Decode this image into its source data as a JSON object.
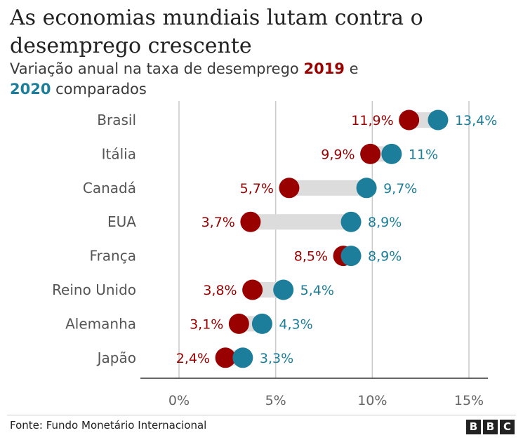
{
  "title": "As economias mundiais lutam contra o desemprego crescente",
  "subtitle": {
    "prefix": "Variação anual na taxa de desemprego",
    "year_a": "2019",
    "middle": "e",
    "year_b": "2020",
    "suffix": "comparados"
  },
  "colors": {
    "y2019": "#990000",
    "y2020": "#1c7e9a",
    "connector": "#dcdcdc",
    "grid": "#cccccc"
  },
  "chart_data": {
    "type": "dumbbell",
    "categories": [
      "Brasil",
      "Itália",
      "Canadá",
      "EUA",
      "França",
      "Reino Unido",
      "Alemanha",
      "Japão"
    ],
    "series": [
      {
        "name": "2019",
        "values": [
          11.9,
          9.9,
          5.7,
          3.7,
          8.5,
          3.8,
          3.1,
          2.4
        ],
        "labels": [
          "11,9%",
          "9,9%",
          "5,7%",
          "3,7%",
          "8,5%",
          "3,8%",
          "3,1%",
          "2,4%"
        ]
      },
      {
        "name": "2020",
        "values": [
          13.4,
          11,
          9.7,
          8.9,
          8.9,
          5.4,
          4.3,
          3.3
        ],
        "labels": [
          "13,4%",
          "11%",
          "9,7%",
          "8,9%",
          "8,9%",
          "5,4%",
          "4,3%",
          "3,3%"
        ]
      }
    ],
    "xlim": [
      0,
      15
    ],
    "xticks": [
      0,
      5,
      10,
      15
    ],
    "xtick_labels": [
      "0%",
      "5%",
      "10%",
      "15%"
    ],
    "grid": true
  },
  "source": "Fonte: Fundo Monetário Internacional",
  "logo": "BBC"
}
